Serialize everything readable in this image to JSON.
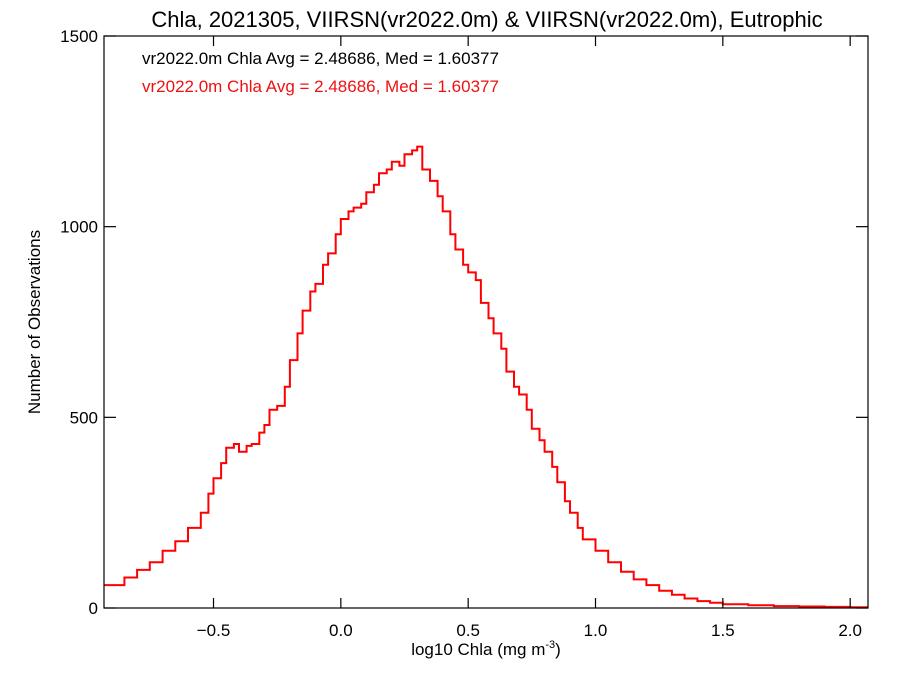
{
  "chart_data": {
    "type": "histogram-step",
    "title": "Chla, 2021305, VIIRSN(vr2022.0m) & VIIRSN(vr2022.0m), Eutrophic",
    "xlabel_main": "log10 Chla (mg m",
    "xlabel_sup": "-3",
    "xlabel_close": ")",
    "ylabel": "Number of Observations",
    "xlim": [
      -0.93,
      2.07
    ],
    "ylim": [
      0,
      1500
    ],
    "xticks": [
      -0.5,
      0.0,
      0.5,
      1.0,
      1.5,
      2.0
    ],
    "xtick_labels": [
      "−0.5",
      "0.0",
      "0.5",
      "1.0",
      "1.5",
      "2.0"
    ],
    "yticks": [
      0,
      500,
      1000,
      1500
    ],
    "ytick_labels": [
      "0",
      "500",
      "1000",
      "1500"
    ],
    "annotations": [
      {
        "text": "vr2022.0m Chla Avg = 2.48686, Med = 1.60377",
        "color": "#000000"
      },
      {
        "text": "vr2022.0m Chla Avg = 2.48686, Med = 1.60377",
        "color": "#ee1111"
      }
    ],
    "series": [
      {
        "color": "#ff0000",
        "points": [
          [
            -0.93,
            60
          ],
          [
            -0.85,
            80
          ],
          [
            -0.8,
            100
          ],
          [
            -0.75,
            120
          ],
          [
            -0.7,
            150
          ],
          [
            -0.65,
            175
          ],
          [
            -0.6,
            210
          ],
          [
            -0.55,
            250
          ],
          [
            -0.52,
            300
          ],
          [
            -0.5,
            340
          ],
          [
            -0.47,
            380
          ],
          [
            -0.45,
            420
          ],
          [
            -0.42,
            430
          ],
          [
            -0.4,
            410
          ],
          [
            -0.37,
            425
          ],
          [
            -0.35,
            430
          ],
          [
            -0.32,
            460
          ],
          [
            -0.3,
            480
          ],
          [
            -0.28,
            520
          ],
          [
            -0.25,
            530
          ],
          [
            -0.22,
            580
          ],
          [
            -0.2,
            650
          ],
          [
            -0.17,
            720
          ],
          [
            -0.15,
            780
          ],
          [
            -0.12,
            830
          ],
          [
            -0.1,
            850
          ],
          [
            -0.07,
            900
          ],
          [
            -0.05,
            930
          ],
          [
            -0.02,
            980
          ],
          [
            0.0,
            1020
          ],
          [
            0.03,
            1040
          ],
          [
            0.05,
            1050
          ],
          [
            0.08,
            1060
          ],
          [
            0.1,
            1090
          ],
          [
            0.13,
            1110
          ],
          [
            0.15,
            1140
          ],
          [
            0.18,
            1150
          ],
          [
            0.2,
            1170
          ],
          [
            0.23,
            1160
          ],
          [
            0.25,
            1190
          ],
          [
            0.28,
            1200
          ],
          [
            0.3,
            1210
          ],
          [
            0.32,
            1150
          ],
          [
            0.35,
            1120
          ],
          [
            0.38,
            1080
          ],
          [
            0.4,
            1040
          ],
          [
            0.43,
            980
          ],
          [
            0.45,
            940
          ],
          [
            0.48,
            900
          ],
          [
            0.5,
            880
          ],
          [
            0.53,
            860
          ],
          [
            0.55,
            800
          ],
          [
            0.58,
            760
          ],
          [
            0.6,
            720
          ],
          [
            0.63,
            680
          ],
          [
            0.65,
            620
          ],
          [
            0.68,
            580
          ],
          [
            0.7,
            560
          ],
          [
            0.73,
            520
          ],
          [
            0.75,
            470
          ],
          [
            0.78,
            440
          ],
          [
            0.8,
            410
          ],
          [
            0.83,
            370
          ],
          [
            0.85,
            330
          ],
          [
            0.88,
            280
          ],
          [
            0.9,
            250
          ],
          [
            0.93,
            210
          ],
          [
            0.95,
            180
          ],
          [
            1.0,
            150
          ],
          [
            1.05,
            120
          ],
          [
            1.1,
            95
          ],
          [
            1.15,
            75
          ],
          [
            1.2,
            60
          ],
          [
            1.25,
            45
          ],
          [
            1.3,
            35
          ],
          [
            1.35,
            25
          ],
          [
            1.4,
            18
          ],
          [
            1.45,
            14
          ],
          [
            1.5,
            10
          ],
          [
            1.6,
            7
          ],
          [
            1.7,
            5
          ],
          [
            1.8,
            4
          ],
          [
            1.9,
            3
          ],
          [
            2.0,
            2
          ],
          [
            2.07,
            2
          ]
        ]
      }
    ]
  }
}
